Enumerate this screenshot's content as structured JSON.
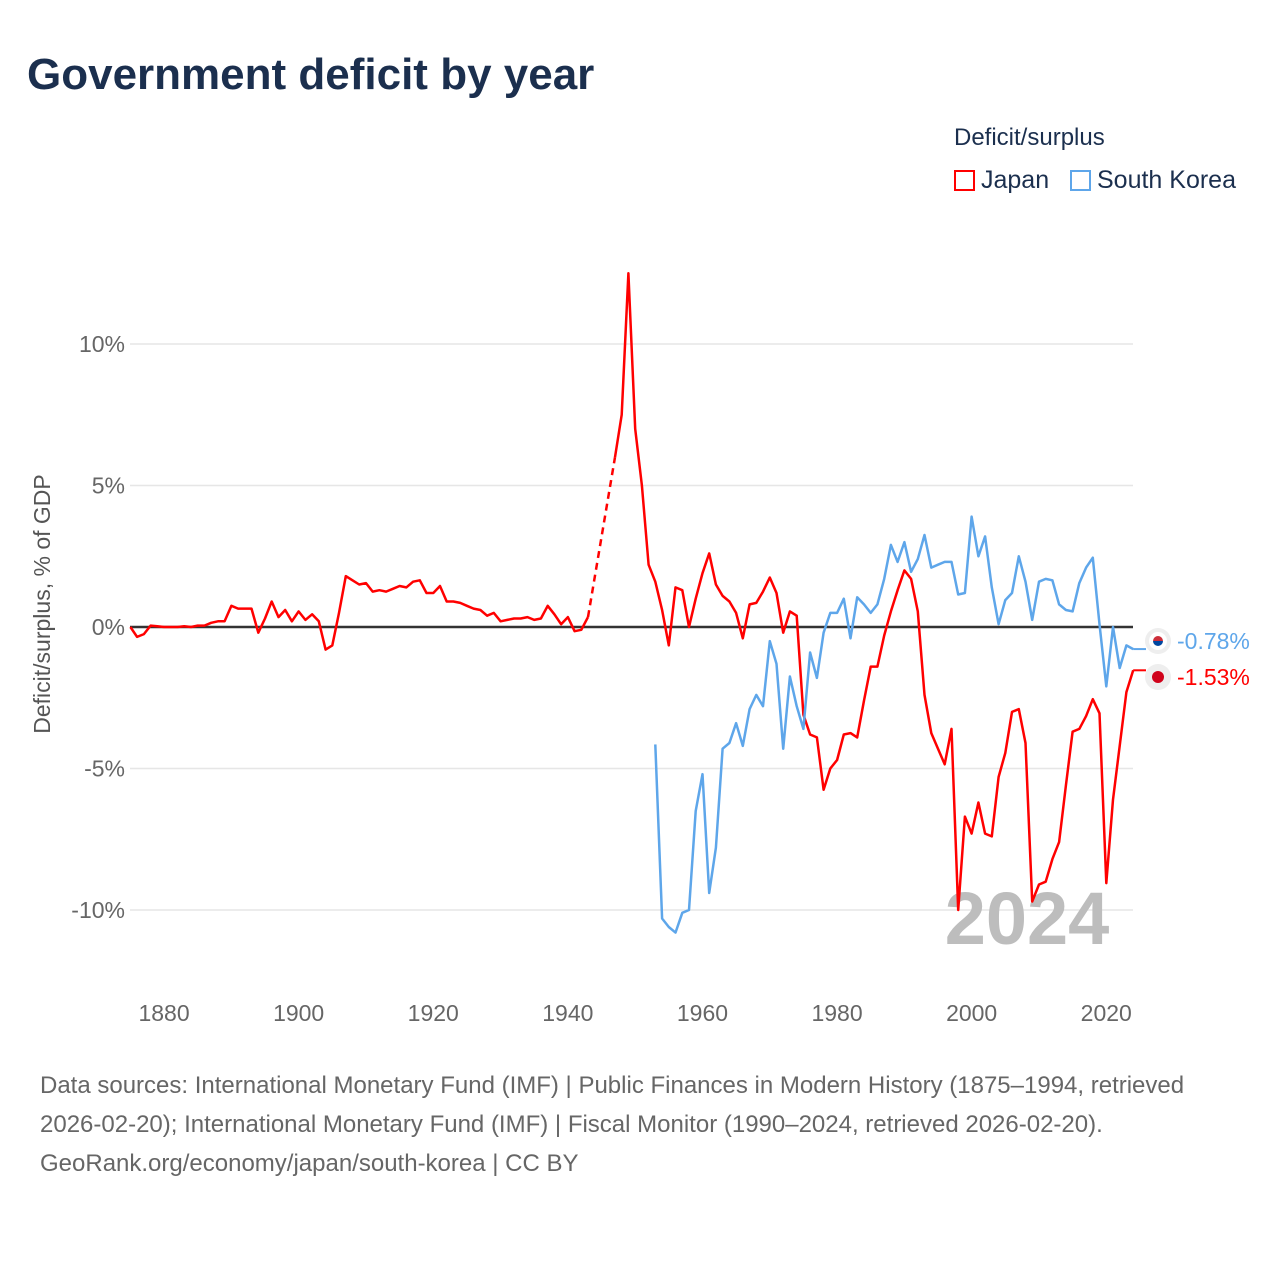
{
  "title": "Government deficit by year",
  "legend": {
    "title": "Deficit/surplus",
    "items": [
      {
        "label": "Japan",
        "color": "#ff0000"
      },
      {
        "label": "South Korea",
        "color": "#5ea6ea"
      }
    ]
  },
  "year_watermark": "2024",
  "end_labels": {
    "south_korea": "-0.78%",
    "japan": "-1.53%"
  },
  "footer": {
    "sources": "Data sources: International Monetary Fund (IMF) | Public Finances in Modern History (1875–1994, retrieved 2026-02-20); International Monetary Fund (IMF) | Fiscal Monitor (1990–2024, retrieved 2026-02-20).",
    "credit": "GeoRank.org/economy/japan/south-korea | CC BY"
  },
  "chart_data": {
    "type": "line",
    "title": "Government deficit by year",
    "xlabel": "",
    "ylabel": "Deficit/surplus, % of GDP",
    "xlim": [
      1875,
      2024
    ],
    "ylim": [
      -12,
      13
    ],
    "x_ticks": [
      "1880",
      "1900",
      "1920",
      "1940",
      "1960",
      "1980",
      "2000",
      "2020"
    ],
    "x_tick_values": [
      1880,
      1900,
      1920,
      1940,
      1960,
      1980,
      2000,
      2020
    ],
    "y_ticks": [
      "10%",
      "5%",
      "0%",
      "-5%",
      "-10%"
    ],
    "y_tick_values": [
      10,
      5,
      0,
      -5,
      -10
    ],
    "grid": true,
    "legend_position": "top-right",
    "series": [
      {
        "name": "Japan",
        "color": "#ff0000",
        "start_year": 1875,
        "gaps": [
          1944,
          1945,
          1946
        ],
        "values": [
          0,
          -0.35,
          -0.25,
          0.05,
          0.03,
          0,
          0,
          0,
          0.03,
          0,
          0.05,
          0.05,
          0.15,
          0.2,
          0.2,
          0.75,
          0.65,
          0.65,
          0.65,
          -0.2,
          0.3,
          0.9,
          0.35,
          0.6,
          0.2,
          0.55,
          0.25,
          0.45,
          0.2,
          -0.8,
          -0.65,
          0.5,
          1.8,
          1.65,
          1.5,
          1.55,
          1.25,
          1.3,
          1.25,
          1.35,
          1.45,
          1.4,
          1.6,
          1.65,
          1.2,
          1.2,
          1.45,
          0.9,
          0.9,
          0.85,
          0.75,
          0.65,
          0.6,
          0.4,
          0.5,
          0.2,
          0.25,
          0.3,
          0.3,
          0.35,
          0.25,
          0.3,
          0.75,
          0.45,
          0.1,
          0.35,
          -0.15,
          -0.1,
          0.35,
          null,
          null,
          null,
          6.0,
          7.5,
          12.5,
          7.0,
          5.0,
          2.2,
          1.6,
          0.6,
          -0.65,
          1.4,
          1.3,
          0,
          1.0,
          1.9,
          2.6,
          1.5,
          1.1,
          0.9,
          0.5,
          -0.4,
          0.8,
          0.85,
          1.25,
          1.75,
          1.2,
          -0.2,
          0.55,
          0.4,
          -3.1,
          -3.8,
          -3.9,
          -5.75,
          -5.0,
          -4.7,
          -3.8,
          -3.75,
          -3.9,
          -2.6,
          -1.4,
          -1.4,
          -0.3,
          0.55,
          1.3,
          2.0,
          1.7,
          0.55,
          -2.4,
          -3.75,
          -4.3,
          -4.85,
          -3.6,
          -10.0,
          -6.7,
          -7.3,
          -6.2,
          -7.3,
          -7.4,
          -5.3,
          -4.45,
          -3.0,
          -2.9,
          -4.1,
          -9.7,
          -9.1,
          -9.0,
          -8.2,
          -7.6,
          -5.6,
          -3.7,
          -3.6,
          -3.15,
          -2.55,
          -3.05,
          -9.05,
          -6.1,
          -4.2,
          -2.3,
          -1.53
        ]
      },
      {
        "name": "South Korea",
        "color": "#5ea6ea",
        "start_year": 1953,
        "values": [
          -4.15,
          -10.3,
          -10.6,
          -10.8,
          -10.1,
          -10.0,
          -6.5,
          -5.2,
          -9.4,
          -7.8,
          -4.3,
          -4.1,
          -3.4,
          -4.2,
          -2.9,
          -2.4,
          -2.8,
          -0.5,
          -1.3,
          -4.3,
          -1.75,
          -2.8,
          -3.6,
          -0.9,
          -1.8,
          -0.2,
          0.5,
          0.5,
          1.0,
          -0.4,
          1.05,
          0.8,
          0.5,
          0.8,
          1.7,
          2.9,
          2.3,
          3.0,
          1.95,
          2.4,
          3.25,
          2.1,
          2.2,
          2.3,
          2.3,
          1.15,
          1.2,
          3.9,
          2.5,
          3.2,
          1.4,
          0.1,
          0.95,
          1.2,
          2.5,
          1.6,
          0.25,
          1.6,
          1.7,
          1.65,
          0.8,
          0.6,
          0.55,
          1.55,
          2.1,
          2.45,
          0.1,
          -2.1,
          0,
          -1.45,
          -0.65,
          -0.78
        ]
      }
    ]
  }
}
